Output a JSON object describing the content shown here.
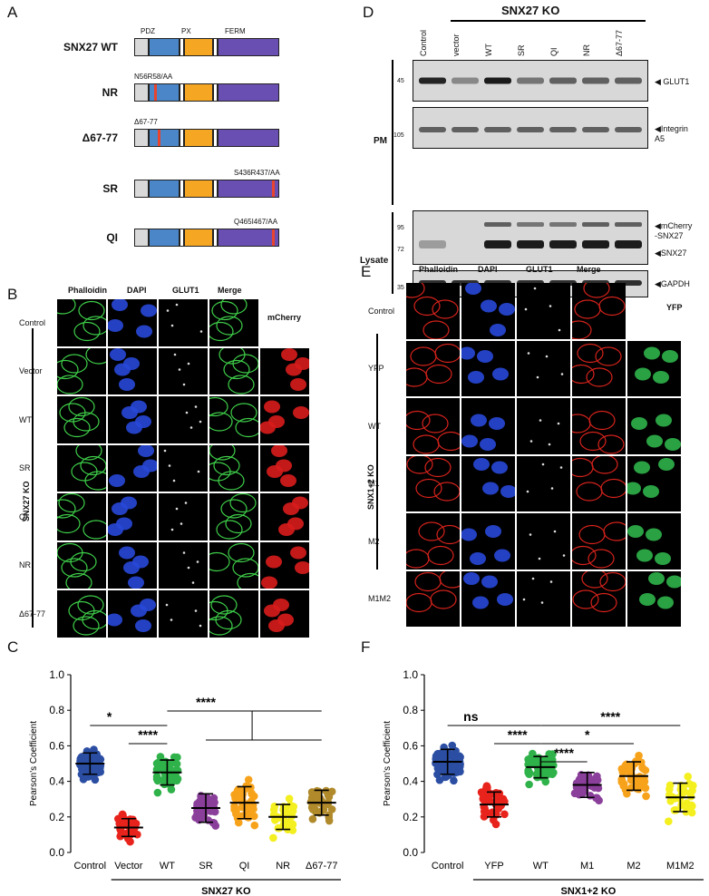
{
  "panels": {
    "A": {
      "label": "A",
      "domain_titles": [
        "PDZ",
        "PX",
        "FERM"
      ],
      "constructs": [
        {
          "name": "SNX27 WT",
          "mutation": ""
        },
        {
          "name": "NR",
          "mutation": "N56R58/AA"
        },
        {
          "name": "Δ67-77",
          "mutation": "Δ67-77"
        },
        {
          "name": "SR",
          "mutation": "S436R437/AA"
        },
        {
          "name": "QI",
          "mutation": "Q465I467/AA"
        }
      ],
      "colors": {
        "nterm": "#d9d9d9",
        "pdz": "#4a86c8",
        "px": "#f5a623",
        "ferm": "#6a4fb3",
        "mut": "#e8442e"
      }
    },
    "B": {
      "label": "B",
      "col_headers": [
        "Phalloidin",
        "DAPI",
        "GLUT1",
        "Merge"
      ],
      "extra_header": "mCherry",
      "rows": [
        "Control",
        "Vector",
        "WT",
        "SR",
        "QI",
        "NR",
        "Δ67-77"
      ],
      "group_label": "SNX27 KO"
    },
    "D": {
      "label": "D",
      "group_label": "SNX27 KO",
      "lanes": [
        "Control",
        "vector",
        "WT",
        "SR",
        "QI",
        "NR",
        "Δ67-77"
      ],
      "sections": [
        "PM",
        "Lysate"
      ],
      "mw_markers": [
        "45",
        "105",
        "95",
        "72",
        "35"
      ],
      "blot_labels": [
        "GLUT1",
        "Integrin\nA5",
        "mCherry\n-SNX27",
        "SNX27",
        "GAPDH"
      ]
    },
    "E": {
      "label": "E",
      "col_headers": [
        "Phalloidin",
        "DAPI",
        "GLUT1",
        "Merge"
      ],
      "extra_header": "YFP",
      "rows": [
        "Control",
        "YFP",
        "WT",
        "M1",
        "M2",
        "M1M2"
      ],
      "group_label": "SNX1+2 KO"
    }
  },
  "chart_data": [
    {
      "panel": "C",
      "type": "scatter",
      "ylabel": "Pearson's Coefficient",
      "ylim": [
        0,
        1.0
      ],
      "yticks": [
        "0.0",
        "0.2",
        "0.4",
        "0.6",
        "0.8",
        "1.0"
      ],
      "categories": [
        "Control",
        "Vector",
        "WT",
        "SR",
        "QI",
        "NR",
        "Δ67-77"
      ],
      "group_label": "SNX27 KO",
      "colors": [
        "#2b4ea3",
        "#e8231c",
        "#2fb24a",
        "#8a3f9a",
        "#f7a21b",
        "#f4ef1f",
        "#b08a2b"
      ],
      "means": [
        0.5,
        0.14,
        0.45,
        0.25,
        0.28,
        0.2,
        0.28
      ],
      "sds": [
        0.06,
        0.05,
        0.07,
        0.08,
        0.09,
        0.07,
        0.07
      ],
      "counts": [
        55,
        40,
        50,
        45,
        42,
        30,
        40
      ],
      "significance": [
        "*",
        "****",
        "****"
      ]
    },
    {
      "panel": "F",
      "type": "scatter",
      "ylabel": "Pearson's Coefficient",
      "ylim": [
        0,
        1.0
      ],
      "yticks": [
        "0.0",
        "0.2",
        "0.4",
        "0.6",
        "0.8",
        "1.0"
      ],
      "categories": [
        "Control",
        "YFP",
        "WT",
        "M1",
        "M2",
        "M1M2"
      ],
      "group_label": "SNX1+2 KO",
      "colors": [
        "#2b4ea3",
        "#e8231c",
        "#2fb24a",
        "#8a3f9a",
        "#f7a21b",
        "#f4ef1f"
      ],
      "means": [
        0.51,
        0.27,
        0.48,
        0.38,
        0.43,
        0.31
      ],
      "sds": [
        0.07,
        0.07,
        0.06,
        0.07,
        0.08,
        0.08
      ],
      "counts": [
        60,
        45,
        50,
        35,
        40,
        30
      ],
      "significance": [
        "ns",
        "****",
        "****",
        "*",
        "****"
      ]
    }
  ]
}
